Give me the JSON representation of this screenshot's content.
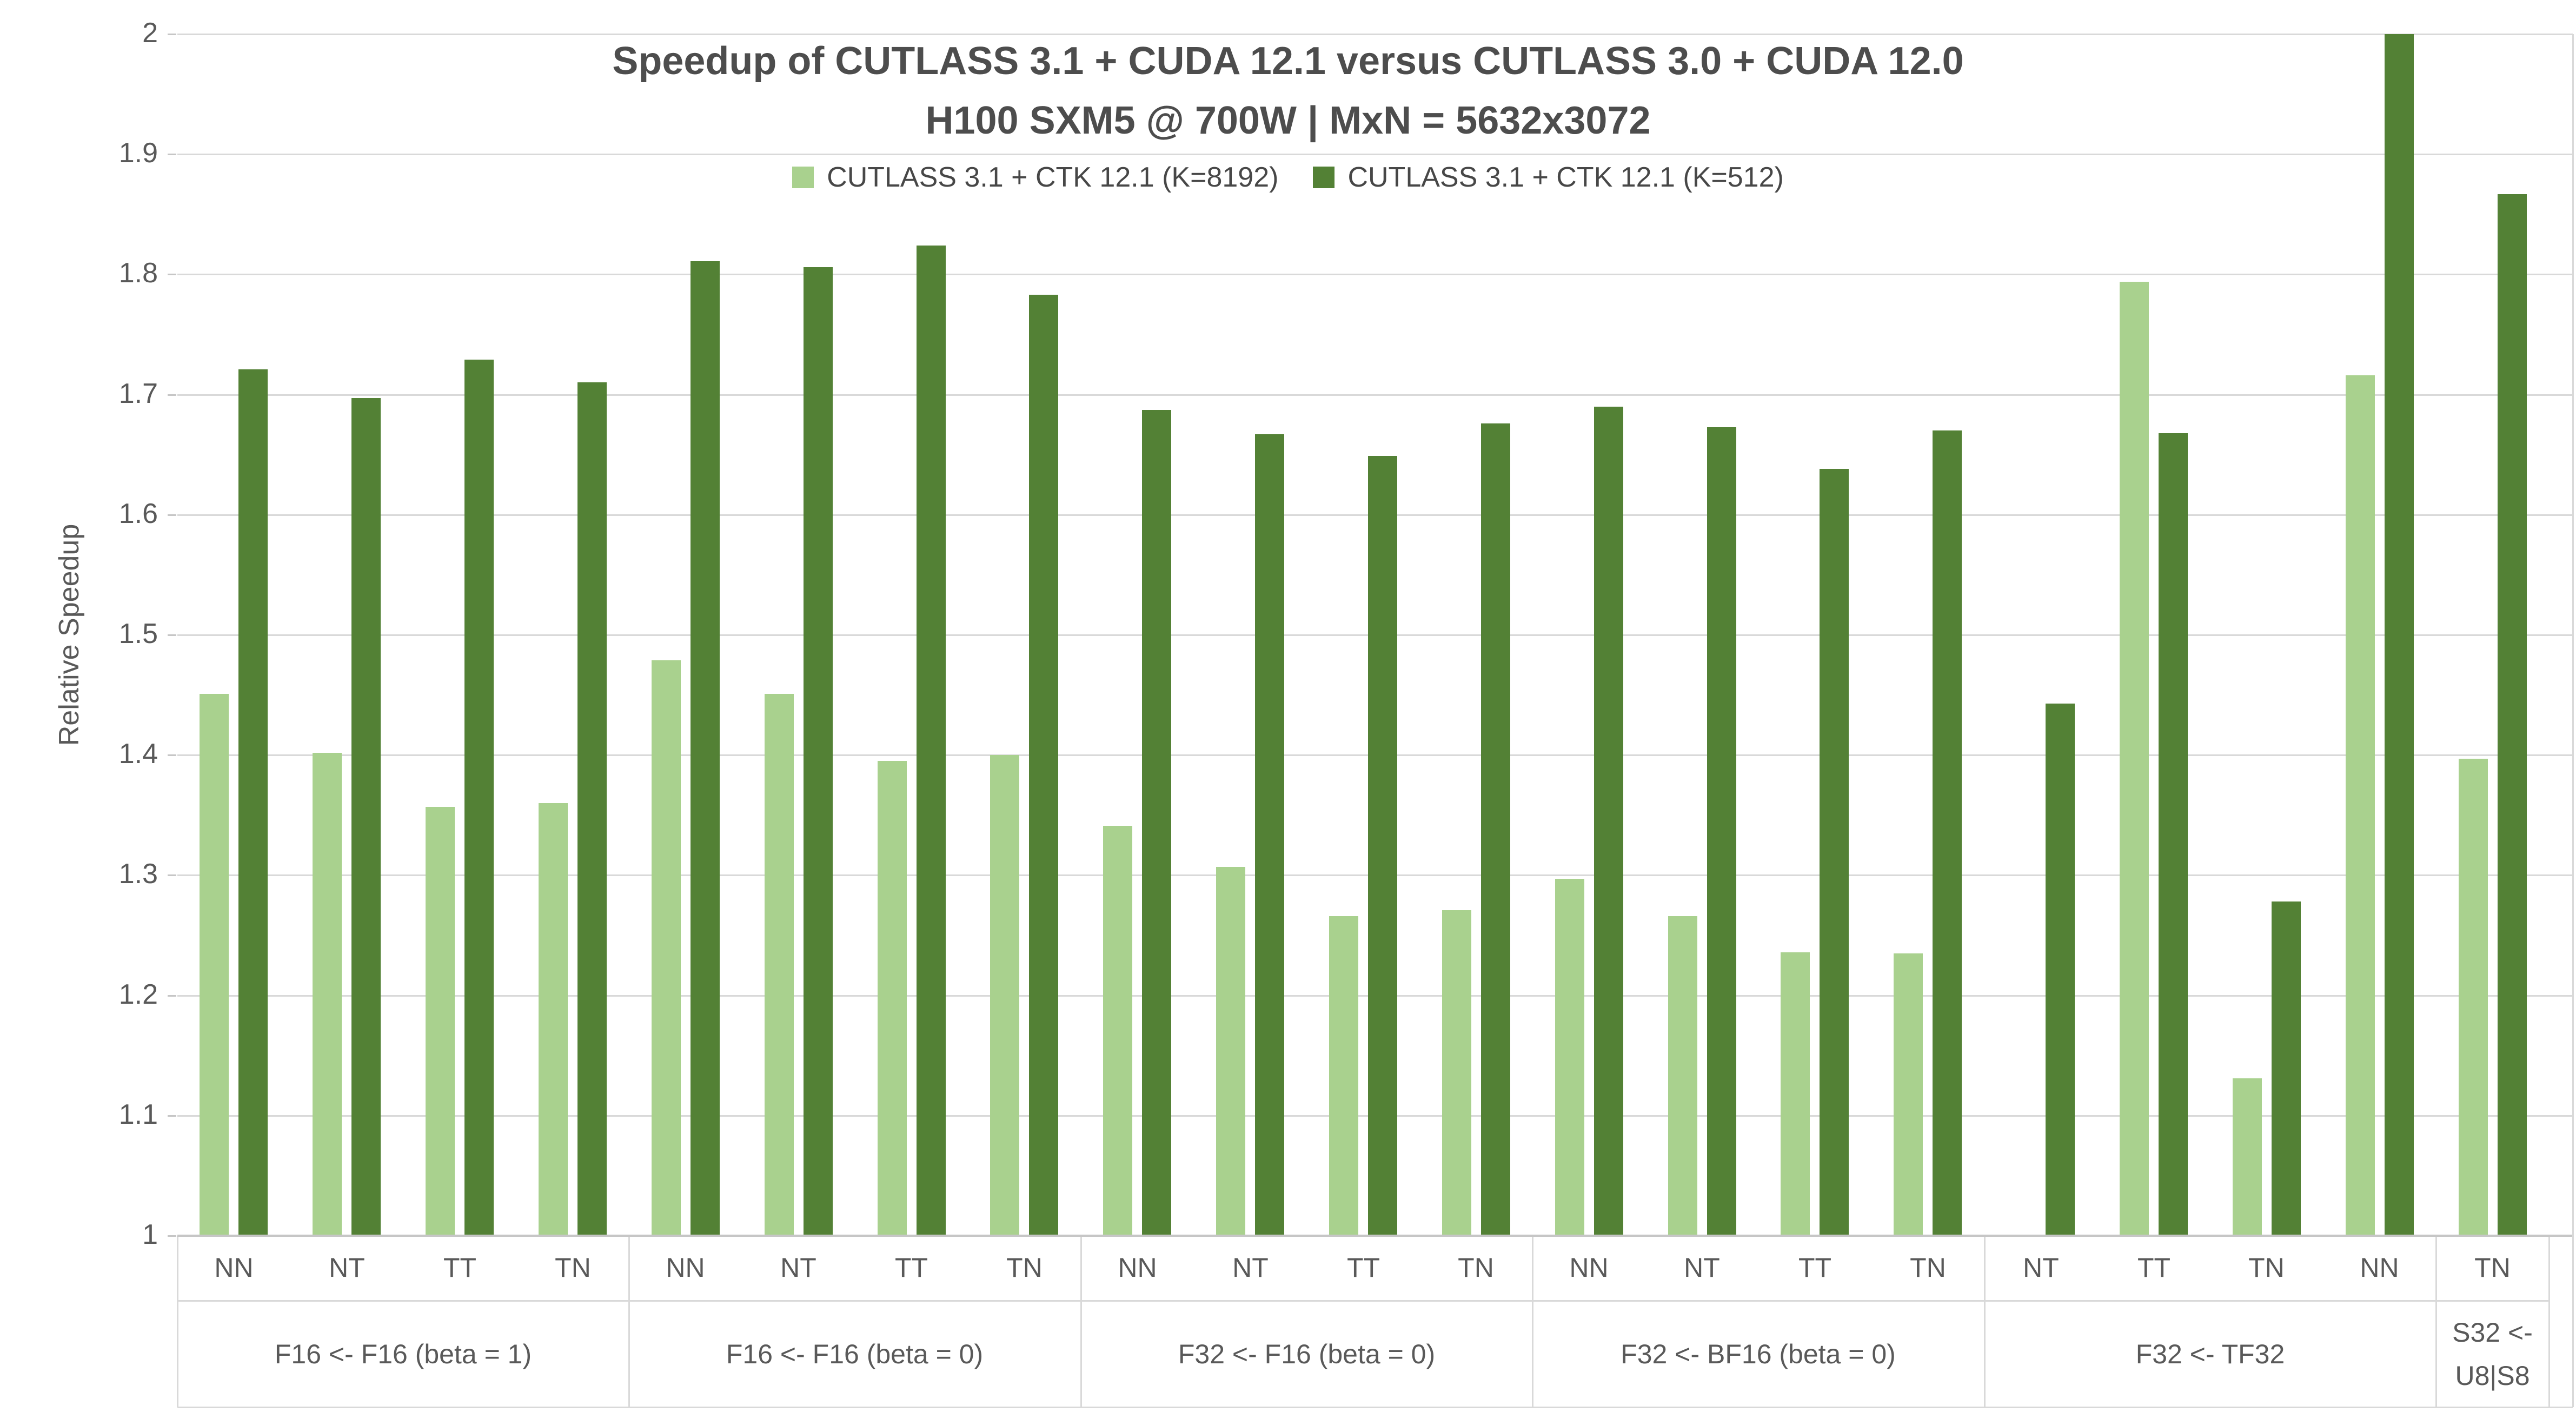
{
  "chart_data": {
    "type": "bar",
    "title": "Speedup of CUTLASS 3.1 + CUDA 12.1 versus CUTLASS 3.0 + CUDA 12.0",
    "subtitle": "H100 SXM5 @ 700W | MxN = 5632x3072",
    "ylabel": "Relative Speedup",
    "ylim": [
      1,
      2
    ],
    "ytick_labels": [
      "1",
      "1.1",
      "1.2",
      "1.3",
      "1.4",
      "1.5",
      "1.6",
      "1.7",
      "1.8",
      "1.9",
      "2"
    ],
    "grid": true,
    "legend_position": "top-center",
    "series": [
      {
        "name": "CUTLASS 3.1 + CTK 12.1 (K=8192)",
        "key": "k8192",
        "color": "#A9D18E"
      },
      {
        "name": "CUTLASS 3.1 + CTK 12.1 (K=512)",
        "key": "k512",
        "color": "#538135"
      }
    ],
    "groups": [
      {
        "label_lines": [
          "F16 <- F16 (beta = 1)"
        ],
        "categories": [
          "NN",
          "NT",
          "TT",
          "TN"
        ],
        "k8192": [
          1.451,
          1.402,
          1.357,
          1.36
        ],
        "k512": [
          1.721,
          1.697,
          1.729,
          1.71
        ]
      },
      {
        "label_lines": [
          "F16 <- F16 (beta = 0)"
        ],
        "categories": [
          "NN",
          "NT",
          "TT",
          "TN"
        ],
        "k8192": [
          1.479,
          1.451,
          1.395,
          1.4
        ],
        "k512": [
          1.811,
          1.806,
          1.824,
          1.783
        ]
      },
      {
        "label_lines": [
          "F32 <- F16 (beta = 0)"
        ],
        "categories": [
          "NN",
          "NT",
          "TT",
          "TN"
        ],
        "k8192": [
          1.341,
          1.307,
          1.266,
          1.271
        ],
        "k512": [
          1.687,
          1.667,
          1.649,
          1.676
        ]
      },
      {
        "label_lines": [
          "F32 <- BF16 (beta = 0)"
        ],
        "categories": [
          "NN",
          "NT",
          "TT",
          "TN"
        ],
        "k8192": [
          1.297,
          1.266,
          1.236,
          1.235
        ],
        "k512": [
          1.69,
          1.673,
          1.638,
          1.67
        ]
      },
      {
        "label_lines": [
          "F32 <- TF32"
        ],
        "categories": [
          "NT",
          "TT",
          "TN",
          "NN"
        ],
        "k8192": [
          1.001,
          1.794,
          1.131,
          1.716
        ],
        "k512": [
          1.443,
          1.668,
          1.278,
          2.0
        ]
      },
      {
        "label_lines": [
          "S32 <-",
          "U8|S8"
        ],
        "categories": [
          "TN"
        ],
        "k8192": [
          1.397
        ],
        "k512": [
          1.867
        ]
      }
    ],
    "colors": {
      "gridline": "#D9D9D9",
      "axis": "#C6C6C6",
      "text": "#595959",
      "title_text": "#4D4D4D",
      "background": "#FFFFFF"
    }
  }
}
